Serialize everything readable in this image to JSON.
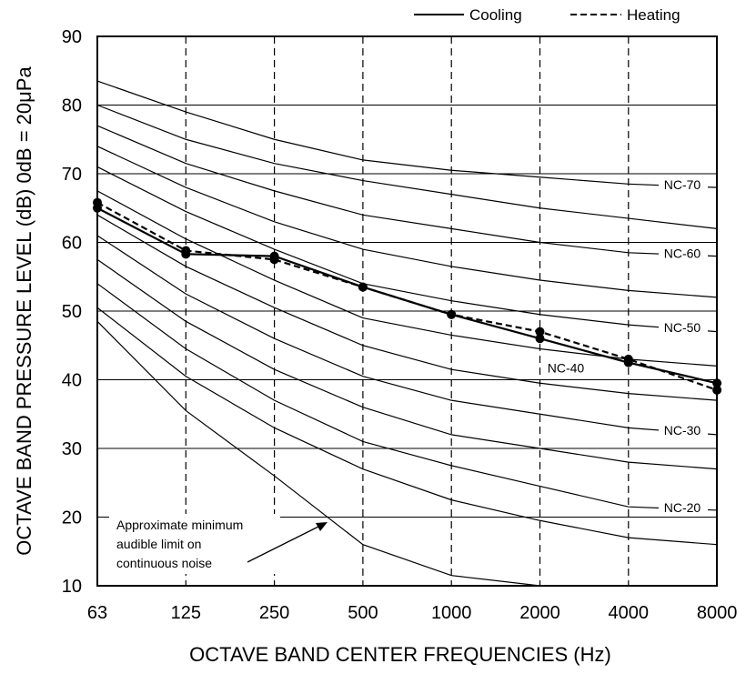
{
  "chart_data": {
    "type": "line",
    "xlabel": "OCTAVE  BAND  CENTER  FREQUENCIES (Hz)",
    "ylabel": "OCTAVE  BAND  PRESSURE  LEVEL (dB)  0dB = 20μPa",
    "x_categories": [
      "63",
      "125",
      "250",
      "500",
      "1000",
      "2000",
      "4000",
      "8000"
    ],
    "x_scale": "log2 (octave bands)",
    "ylim": [
      10,
      90
    ],
    "y_ticks": [
      "10",
      "20",
      "30",
      "40",
      "50",
      "60",
      "70",
      "80",
      "90"
    ],
    "grid": "horizontal solid lines every 10 dB; vertical dashed lines at each octave band",
    "legend": {
      "position": "top-right, above plot",
      "entries": [
        {
          "label": "Cooling",
          "style": "solid"
        },
        {
          "label": "Heating",
          "style": "dashed"
        }
      ]
    },
    "series": [
      {
        "name": "Cooling",
        "style": "solid",
        "markers": true,
        "values": [
          65.0,
          58.3,
          58.0,
          53.5,
          49.5,
          46.0,
          42.5,
          39.5
        ]
      },
      {
        "name": "Heating",
        "style": "dashed",
        "markers": true,
        "values": [
          65.8,
          58.8,
          57.5,
          53.5,
          49.5,
          47.0,
          43.0,
          38.5
        ]
      }
    ],
    "nc_curves": [
      {
        "label": "NC-70",
        "values": [
          83.5,
          79.0,
          75.0,
          72.0,
          70.5,
          69.5,
          68.5,
          68.0
        ]
      },
      {
        "label": "",
        "values": [
          80.0,
          75.0,
          71.5,
          69.0,
          67.0,
          65.0,
          63.5,
          62.0
        ]
      },
      {
        "label": "NC-60",
        "values": [
          77.0,
          71.5,
          67.5,
          64.0,
          62.0,
          60.0,
          58.5,
          58.0
        ]
      },
      {
        "label": "",
        "values": [
          74.0,
          68.0,
          63.0,
          59.0,
          56.5,
          54.5,
          53.0,
          52.0
        ]
      },
      {
        "label": "NC-50",
        "values": [
          71.0,
          64.5,
          59.0,
          54.0,
          51.5,
          49.5,
          48.0,
          47.0
        ]
      },
      {
        "label": "NC-40",
        "values": [
          67.5,
          60.5,
          54.5,
          49.0,
          46.5,
          44.5,
          43.0,
          42.0
        ]
      },
      {
        "label": "",
        "values": [
          64.0,
          56.5,
          50.5,
          45.0,
          41.5,
          39.5,
          38.0,
          37.0
        ]
      },
      {
        "label": "NC-30",
        "values": [
          61.0,
          52.5,
          46.0,
          40.5,
          37.0,
          35.0,
          33.0,
          32.0
        ]
      },
      {
        "label": "",
        "values": [
          57.5,
          48.5,
          41.5,
          36.0,
          32.0,
          30.0,
          28.0,
          27.0
        ]
      },
      {
        "label": "NC-20",
        "values": [
          54.0,
          44.5,
          37.0,
          31.0,
          27.5,
          24.5,
          21.5,
          21.0
        ]
      },
      {
        "label": "",
        "values": [
          50.5,
          40.5,
          33.0,
          27.0,
          22.5,
          19.5,
          17.0,
          16.0
        ]
      }
    ],
    "audible_limit_curve": {
      "values": [
        48.5,
        35.5,
        26.0,
        16.0,
        11.5,
        10.0,
        null,
        null
      ]
    },
    "annotation": {
      "lines": [
        "Approximate minimum",
        "audible limit on",
        "continuous noise"
      ]
    }
  }
}
